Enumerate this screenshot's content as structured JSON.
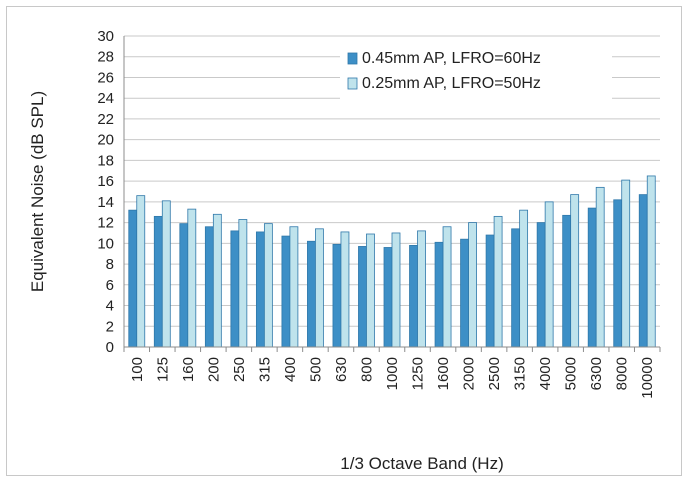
{
  "chart_data": {
    "type": "bar",
    "title": "",
    "xlabel": "1/3 Octave Band (Hz)",
    "ylabel": "Equivalent Noise (dB SPL)",
    "ylim": [
      0,
      30
    ],
    "yticks": [
      0,
      2,
      4,
      6,
      8,
      10,
      12,
      14,
      16,
      18,
      20,
      22,
      24,
      26,
      28,
      30
    ],
    "grid": true,
    "legend_position": "top-right",
    "categories": [
      "100",
      "125",
      "160",
      "200",
      "250",
      "315",
      "400",
      "500",
      "630",
      "800",
      "1000",
      "1250",
      "1600",
      "2000",
      "2500",
      "3150",
      "4000",
      "5000",
      "6300",
      "8000",
      "10000"
    ],
    "series": [
      {
        "name": "0.45mm AP, LFRO=60Hz",
        "color": "#3d8fc6",
        "values": [
          13.2,
          12.6,
          11.9,
          11.6,
          11.2,
          11.1,
          10.7,
          10.2,
          9.9,
          9.7,
          9.6,
          9.8,
          10.1,
          10.4,
          10.8,
          11.4,
          12.0,
          12.7,
          13.4,
          14.2,
          14.7
        ]
      },
      {
        "name": "0.25mm AP, LFRO=50Hz",
        "color": "#bfe3ec",
        "values": [
          14.6,
          14.1,
          13.3,
          12.8,
          12.3,
          11.9,
          11.6,
          11.4,
          11.1,
          10.9,
          11.0,
          11.2,
          11.6,
          12.0,
          12.6,
          13.2,
          14.0,
          14.7,
          15.4,
          16.1,
          16.5
        ]
      }
    ]
  }
}
